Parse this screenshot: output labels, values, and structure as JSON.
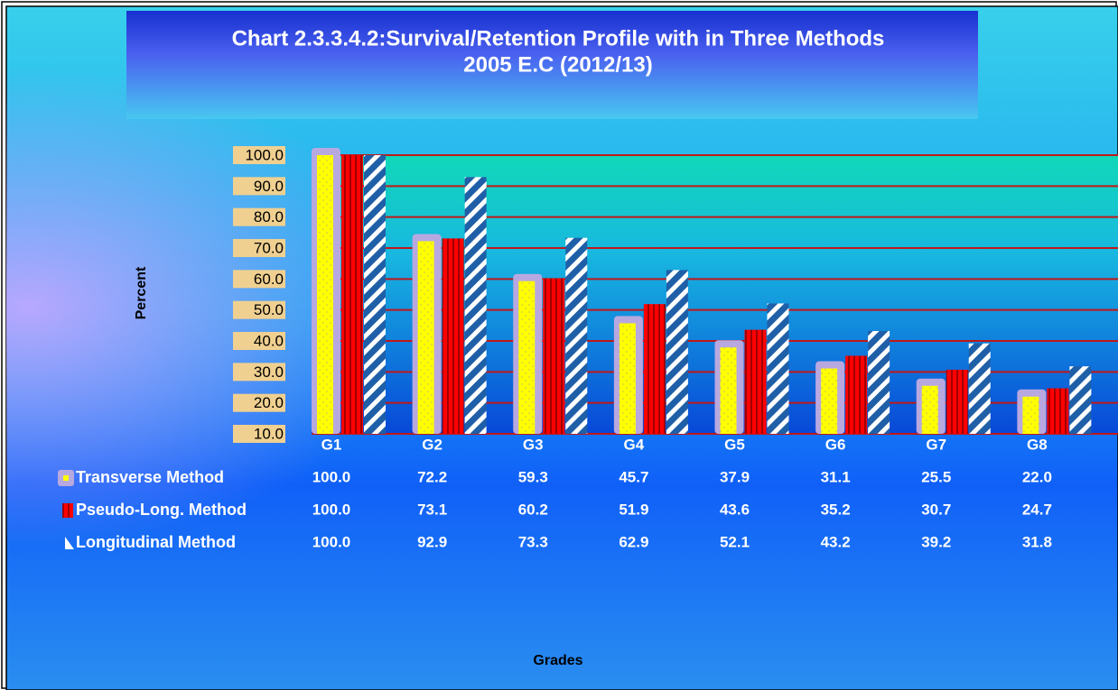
{
  "chart_data": {
    "type": "bar",
    "title": "Chart 2.3.3.4.2:Survival/Retention Profile with  in Three Methods",
    "subtitle": "2005 E.C (2012/13)",
    "y_label": "Percent",
    "x_label": "Grades",
    "categories": [
      "G1",
      "G2",
      "G3",
      "G4",
      "G5",
      "G6",
      "G7",
      "G8"
    ],
    "series": [
      {
        "name": "Transverse Method",
        "color": "#ffff00",
        "values": [
          100,
          72.2,
          59.3,
          45.7,
          37.9,
          31.1,
          25.5,
          22.0
        ],
        "value_labels": [
          "100.0",
          "72.2",
          "59.3",
          "45.7",
          "37.9",
          "31.1",
          "25.5",
          "22.0"
        ]
      },
      {
        "name": "Pseudo-Long. Method",
        "color": "#ff0000",
        "values": [
          100,
          73.1,
          60.2,
          51.9,
          43.6,
          35.2,
          30.7,
          24.7
        ],
        "value_labels": [
          "100.0",
          "73.1",
          "60.2",
          "51.9",
          "43.6",
          "35.2",
          "30.7",
          "24.7"
        ]
      },
      {
        "name": "Longitudinal Method",
        "color": "#1f5fa8",
        "values": [
          100,
          92.9,
          73.3,
          62.9,
          52.1,
          43.2,
          39.2,
          31.8
        ],
        "value_labels": [
          "100.0",
          "92.9",
          "73.3",
          "62.9",
          "52.1",
          "43.2",
          "39.2",
          "31.8"
        ]
      }
    ],
    "ylim": [
      10,
      100
    ],
    "yticks": [
      {
        "value": 10,
        "label": "10.0"
      },
      {
        "value": 20,
        "label": "20.0"
      },
      {
        "value": 30,
        "label": "30.0"
      },
      {
        "value": 40,
        "label": "40.0"
      },
      {
        "value": 50,
        "label": "50.0"
      },
      {
        "value": 60,
        "label": "60.0"
      },
      {
        "value": 70,
        "label": "70.0"
      },
      {
        "value": 80,
        "label": "80.0"
      },
      {
        "value": 90,
        "label": "90.0"
      },
      {
        "value": 100,
        "label": "100.0"
      }
    ],
    "grid": true
  }
}
